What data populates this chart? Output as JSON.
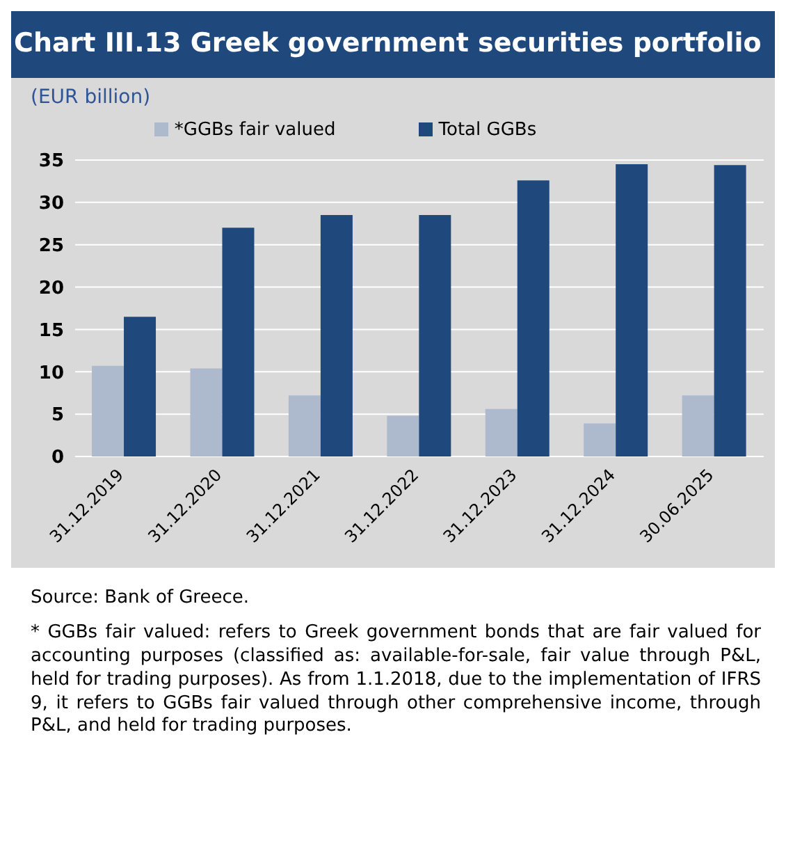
{
  "chart_data": {
    "type": "bar",
    "title": "Chart III.13 Greek government securities portfolio",
    "ylabel": "(EUR billion)",
    "categories": [
      "31.12.2019",
      "31.12.2020",
      "31.12.2021",
      "31.12.2022",
      "31.12.2023",
      "31.12.2024",
      "30.06.2025"
    ],
    "series": [
      {
        "name": "*GGBs fair valued",
        "color": "#adb9cc",
        "values": [
          10.7,
          10.4,
          7.2,
          4.8,
          5.6,
          3.9,
          7.2
        ]
      },
      {
        "name": "Total GGBs",
        "color": "#1f487c",
        "values": [
          16.5,
          27.0,
          28.5,
          28.5,
          32.6,
          34.5,
          34.4
        ]
      }
    ],
    "ylim": [
      0,
      35
    ],
    "yticks": [
      0,
      5,
      10,
      15,
      20,
      25,
      30,
      35
    ],
    "grid": "y",
    "legend": "top",
    "annotations": [
      "Source: Bank of Greece.",
      "* GGBs fair valued: refers to Greek government bonds that are fair valued for accounting purposes (classified as: available-for-sale, fair value through P&L, held for trading purposes). As from 1.1.2018, due to the implementation of IFRS 9, it refers to GGBs fair valued through other comprehensive income, through P&L, and held for trading purposes."
    ]
  }
}
